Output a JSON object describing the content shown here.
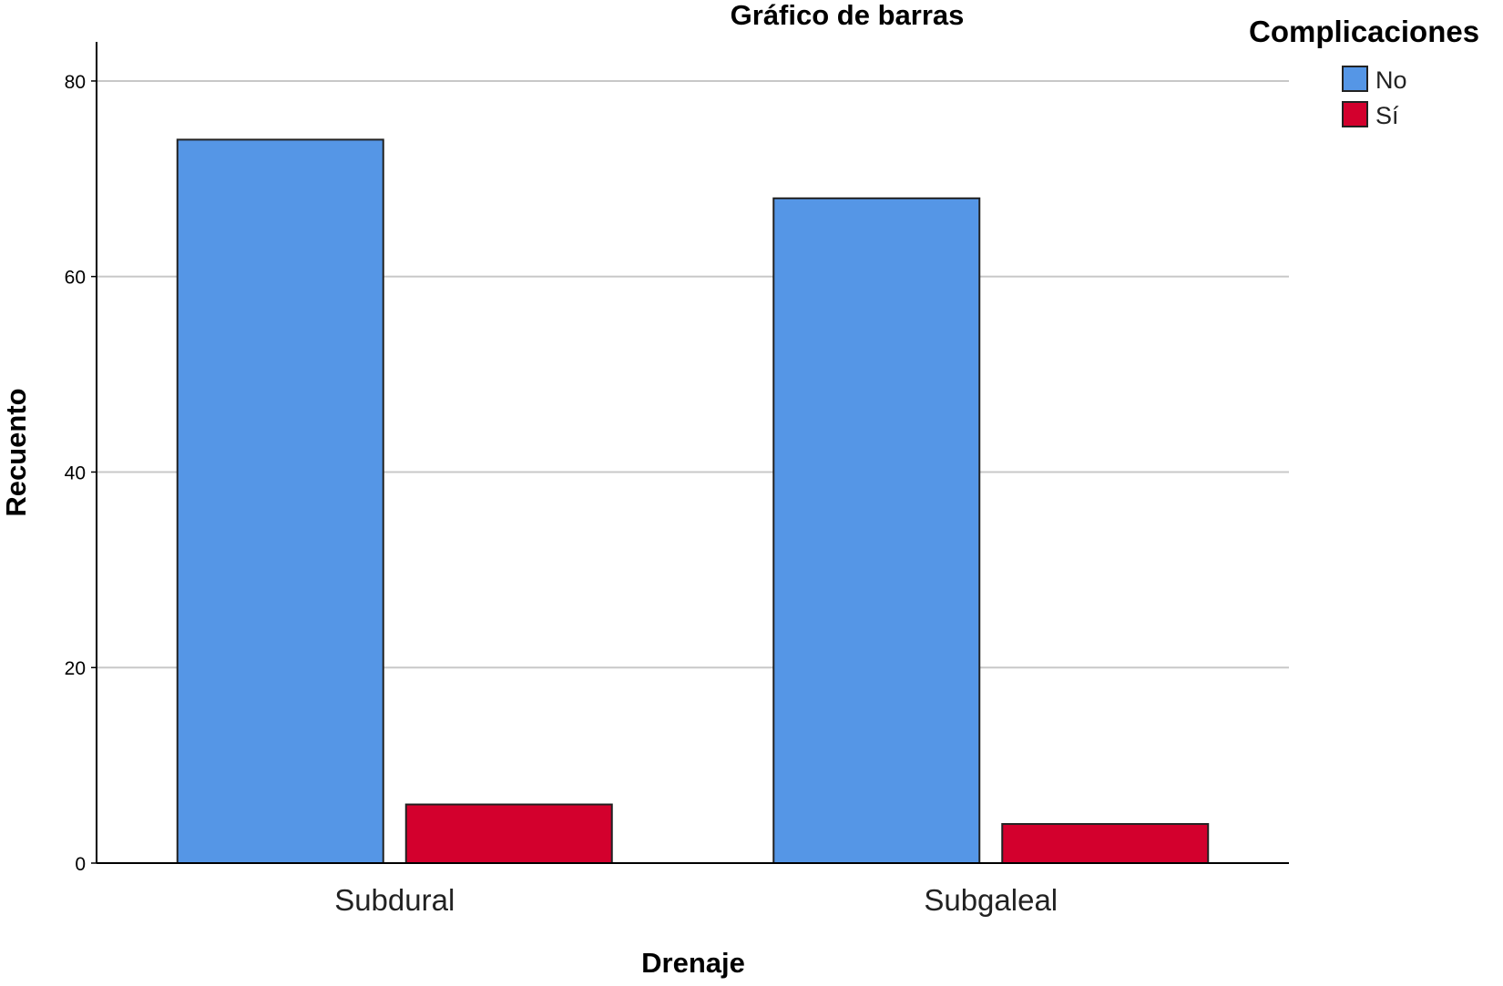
{
  "chart_data": {
    "type": "bar",
    "title": "Gráfico de barras",
    "xlabel": "Drenaje",
    "ylabel": "Recuento",
    "categories": [
      "Subdural",
      "Subgaleal"
    ],
    "series": [
      {
        "name": "No",
        "values": [
          74,
          68
        ],
        "color": "#5596e6"
      },
      {
        "name": "Sí",
        "values": [
          6,
          4
        ],
        "color": "#d3002d"
      }
    ],
    "ylim": [
      0,
      84
    ],
    "yticks": [
      0,
      20,
      40,
      60,
      80
    ],
    "grid": true,
    "legend": {
      "title": "Complicaciones",
      "placement": "top-right"
    }
  }
}
